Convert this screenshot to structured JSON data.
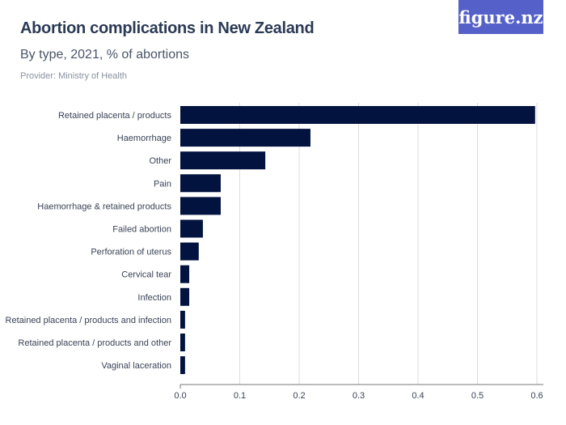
{
  "header": {
    "title": "Abortion complications in New Zealand",
    "subtitle": "By type, 2021, % of abortions",
    "provider": "Provider: Ministry of Health",
    "logo": "figure.nz"
  },
  "colors": {
    "bar": "#03133f",
    "grid": "#dcdcdc",
    "logo_bg": "#5561c8"
  },
  "chart_data": {
    "type": "bar",
    "orientation": "horizontal",
    "categories": [
      "Retained placenta / products",
      "Haemorrhage",
      "Other",
      "Pain",
      "Haemorrhage & retained products",
      "Failed abortion",
      "Perforation of uterus",
      "Cervical tear",
      "Infection",
      "Retained placenta / products and infection",
      "Retained placenta / products and other",
      "Vaginal laceration"
    ],
    "values": [
      0.597,
      0.219,
      0.143,
      0.068,
      0.068,
      0.038,
      0.031,
      0.015,
      0.015,
      0.008,
      0.008,
      0.008
    ],
    "xlim": [
      0,
      0.6
    ],
    "xticks": [
      "0.0",
      "0.1",
      "0.2",
      "0.3",
      "0.4",
      "0.5",
      "0.6"
    ],
    "grid": true
  }
}
